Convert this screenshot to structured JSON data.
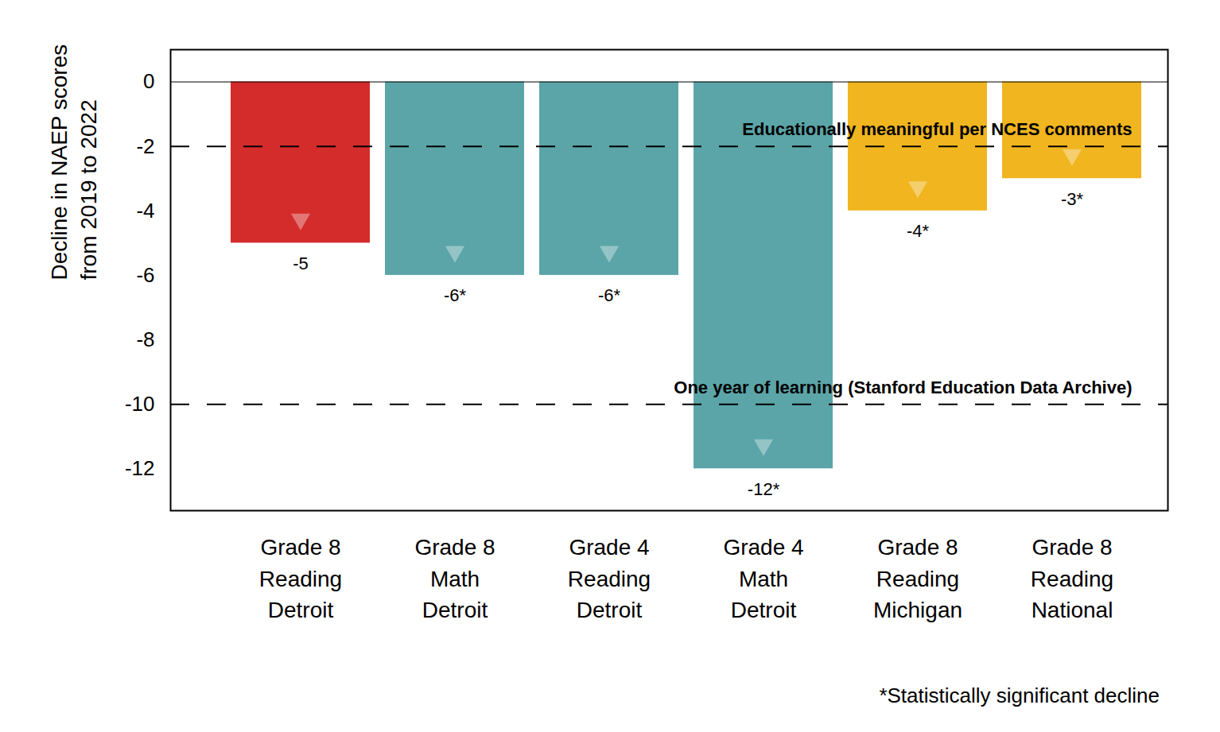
{
  "chart_data": {
    "type": "bar",
    "y_label": "Decline in NAEP scores\nfrom 2019 to 2022",
    "categories": [
      "Grade 8\nReading\nDetroit",
      "Grade 8\nMath\nDetroit",
      "Grade 4\nReading\nDetroit",
      "Grade 4\nMath\nDetroit",
      "Grade 8\nReading\nMichigan",
      "Grade 8\nReading\nNational"
    ],
    "values": [
      -5,
      -6,
      -6,
      -12,
      -4,
      -3
    ],
    "value_labels": [
      "-5",
      "-6*",
      "-6*",
      "-12*",
      "-4*",
      "-3*"
    ],
    "colors": [
      "#d42b2b",
      "#5ba5a8",
      "#5ba5a8",
      "#5ba5a8",
      "#f0b51f",
      "#f0b51f"
    ],
    "data_labels": true,
    "ylim": [
      -13.3,
      1
    ],
    "yticks": [
      -12,
      -10,
      -8,
      -6,
      -4,
      -2,
      0
    ],
    "annotations": [
      {
        "text": "Educationally meaningful per NCES comments",
        "y": -2
      },
      {
        "text": "One year of learning (Stanford Education Data Archive)",
        "y": -10
      }
    ],
    "footnote": "*Statistically significant decline"
  }
}
